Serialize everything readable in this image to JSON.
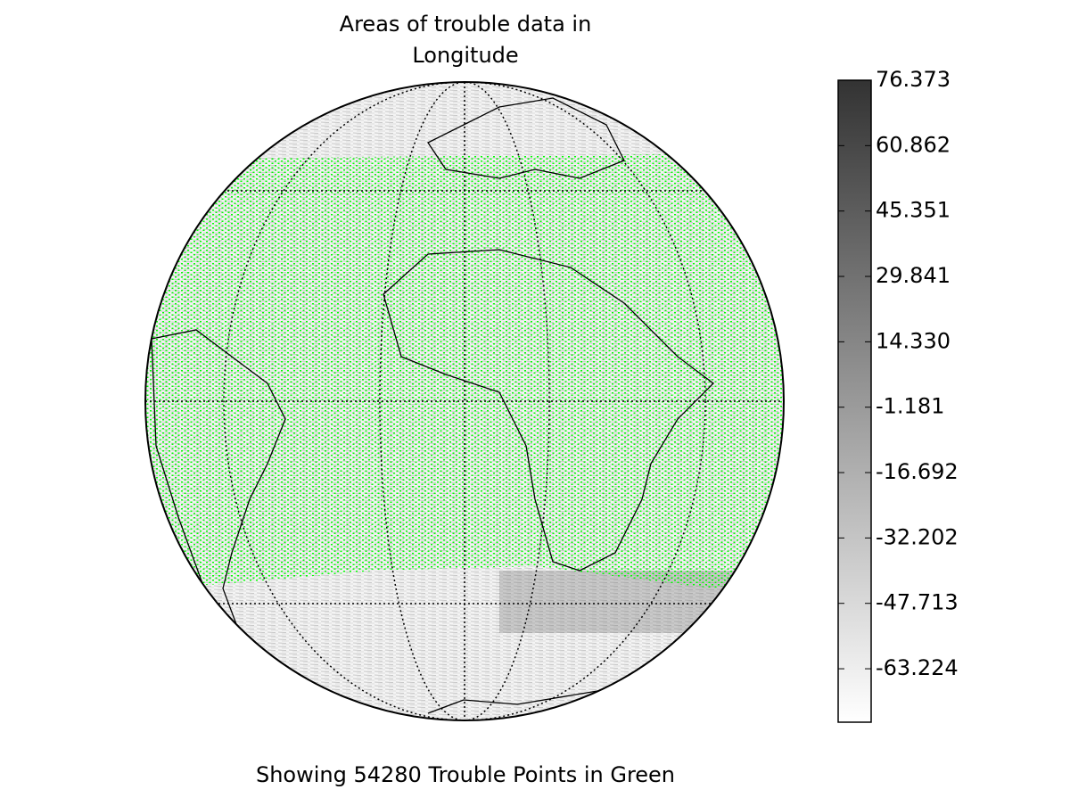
{
  "chart_data": {
    "type": "map",
    "title": [
      "Areas of trouble data in",
      "Longitude"
    ],
    "caption": "Showing 54280 Trouble Points in Green",
    "point_color": "#00ff00",
    "colorbar": {
      "lim": [
        -75.9,
        76.373
      ],
      "colors": [
        "#ffffff",
        "#333333"
      ],
      "ticks": [
        76.373,
        60.862,
        45.351,
        29.841,
        {
          "value": 14.33,
          "label": "14.330"
        },
        -1.181,
        -16.692,
        -32.202,
        -47.713,
        -63.224
      ]
    }
  }
}
